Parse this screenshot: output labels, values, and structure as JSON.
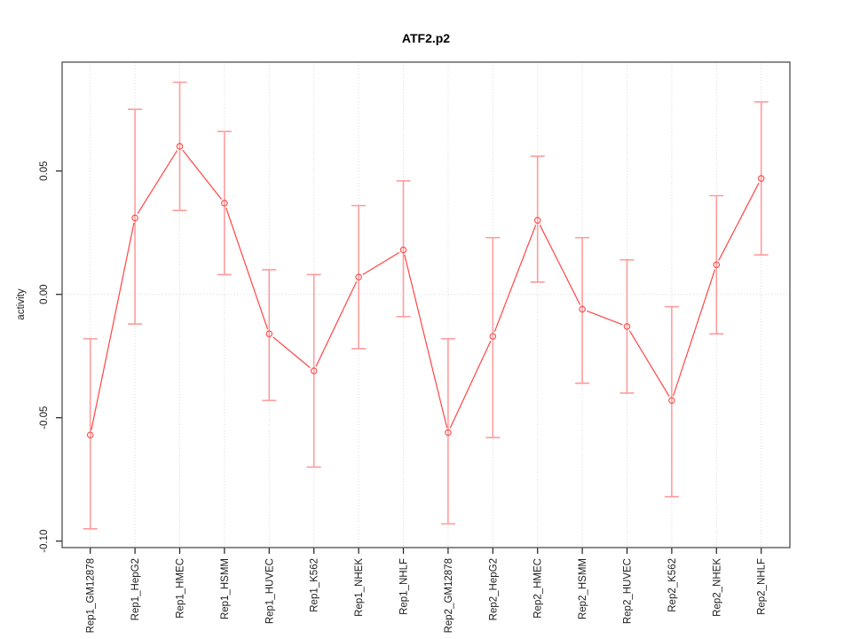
{
  "chart_data": {
    "type": "line",
    "title": "ATF2.p2",
    "xlabel": "",
    "ylabel": "activity",
    "categories": [
      "Rep1_GM12878",
      "Rep1_HepG2",
      "Rep1_HMEC",
      "Rep1_HSMM",
      "Rep1_HUVEC",
      "Rep1_K562",
      "Rep1_NHEK",
      "Rep1_NHLF",
      "Rep2_GM12878",
      "Rep2_HepG2",
      "Rep2_HMEC",
      "Rep2_HSMM",
      "Rep2_HUVEC",
      "Rep2_K562",
      "Rep2_NHEK",
      "Rep2_NHLF"
    ],
    "series": [
      {
        "name": "activity",
        "values": [
          -0.057,
          0.031,
          0.06,
          0.037,
          -0.016,
          -0.031,
          0.007,
          0.018,
          -0.056,
          -0.017,
          0.03,
          -0.006,
          -0.013,
          -0.043,
          0.012,
          0.047
        ],
        "error_lower": [
          -0.095,
          -0.012,
          0.034,
          0.008,
          -0.043,
          -0.07,
          -0.022,
          -0.009,
          -0.093,
          -0.058,
          0.005,
          -0.036,
          -0.04,
          -0.082,
          -0.016,
          0.016
        ],
        "error_upper": [
          -0.018,
          0.075,
          0.086,
          0.066,
          0.01,
          0.008,
          0.036,
          0.046,
          -0.018,
          0.023,
          0.056,
          0.023,
          0.014,
          -0.005,
          0.04,
          0.078
        ]
      }
    ],
    "y_ticks": [
      {
        "value": 0.05,
        "label": "0.05"
      },
      {
        "value": 0.0,
        "label": "0.00"
      },
      {
        "value": -0.05,
        "label": "-0.05"
      },
      {
        "value": -0.1,
        "label": "-0.10"
      }
    ],
    "ylim": [
      -0.1026,
      0.0941
    ],
    "x_label_rotation": 90,
    "grid": {
      "vertical_per_category": true,
      "horizontal_at_zero": true,
      "style": "dotted"
    },
    "legend_position": "none",
    "marker": "open-circle",
    "line_style": "segments-with-point-gaps",
    "colors": {
      "series_line": "#ff4545",
      "marker_stroke": "#ff4545",
      "error_bar": "#ff9c9c",
      "gridline": "#d7d7d7",
      "frame": "#4d4d4d",
      "text": "#1c1c1c",
      "background": "#ffffff"
    }
  }
}
